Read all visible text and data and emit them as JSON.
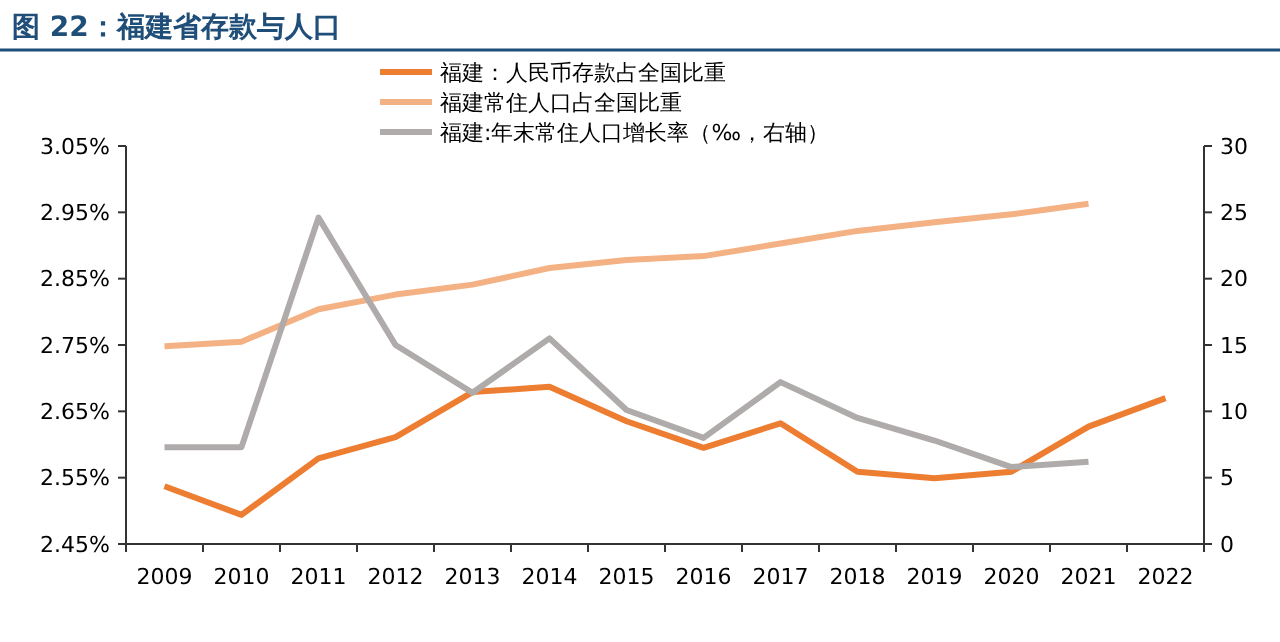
{
  "chart_data": {
    "type": "line",
    "title": "图 22：福建省存款与人口",
    "categories": [
      "2009",
      "2010",
      "2011",
      "2012",
      "2013",
      "2014",
      "2015",
      "2016",
      "2017",
      "2018",
      "2019",
      "2020",
      "2021",
      "2022"
    ],
    "series": [
      {
        "name": "福建：人民币存款占全国比重",
        "color": "#ed7d31",
        "values": [
          2.537,
          2.494,
          2.579,
          2.611,
          2.679,
          2.687,
          2.635,
          2.595,
          2.632,
          2.559,
          2.549,
          2.559,
          2.627,
          2.67
        ]
      },
      {
        "name": "福建常住人口占全国比重",
        "color": "#f4b183",
        "values": [
          2.748,
          2.755,
          2.804,
          2.826,
          2.841,
          2.866,
          2.878,
          2.884,
          2.903,
          2.922,
          2.935,
          2.947,
          2.963,
          null
        ]
      },
      {
        "name": "福建:年末常住人口增长率（‰，右轴）",
        "color": "#afabab",
        "axis": "y2",
        "values": [
          7.3,
          7.3,
          24.6,
          15.0,
          11.4,
          15.5,
          10.1,
          8.0,
          12.2,
          9.5,
          7.8,
          5.8,
          6.2,
          null
        ]
      }
    ],
    "ylim": [
      2.45,
      3.05
    ],
    "yticks": [
      {
        "value": 2.45,
        "label": "2.45%"
      },
      {
        "value": 2.55,
        "label": "2.55%"
      },
      {
        "value": 2.65,
        "label": "2.65%"
      },
      {
        "value": 2.75,
        "label": "2.75%"
      },
      {
        "value": 2.85,
        "label": "2.85%"
      },
      {
        "value": 2.95,
        "label": "2.95%"
      },
      {
        "value": 3.05,
        "label": "3.05%"
      }
    ],
    "y2lim": [
      0,
      30
    ],
    "y2ticks": [
      0,
      5,
      10,
      15,
      20,
      25,
      30
    ],
    "legend": "top",
    "grid": false,
    "line_style": "solid",
    "marker": "none"
  }
}
